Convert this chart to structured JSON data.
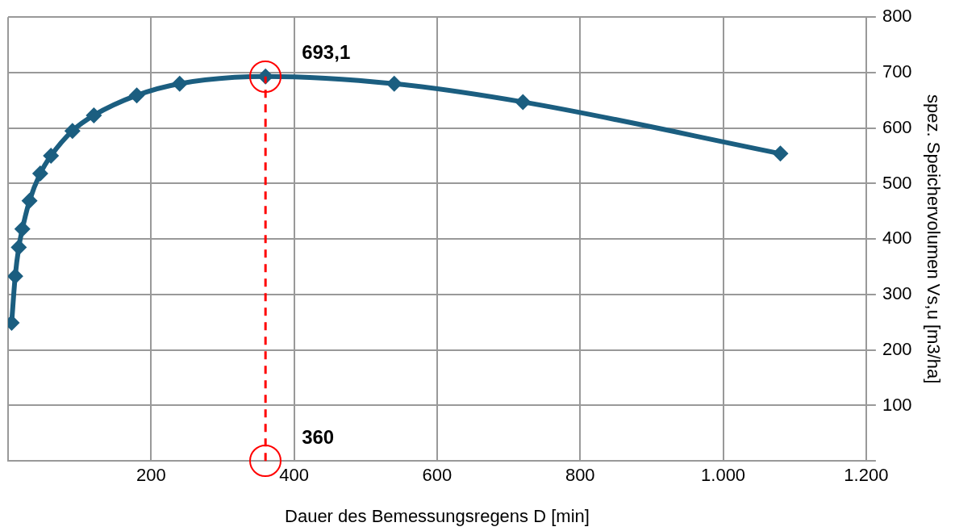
{
  "chart_data": {
    "type": "line",
    "xlabel": "Dauer des Bemessungsregens D [min]",
    "ylabel": "spez. Speichervolumen Vs,u [m3/ha]",
    "x": [
      5,
      10,
      15,
      20,
      30,
      45,
      60,
      90,
      120,
      180,
      240,
      360,
      540,
      720,
      1080
    ],
    "series": [
      {
        "color": "#1b5e80",
        "values": [
          249,
          333,
          385,
          418,
          469,
          518,
          550,
          595,
          623,
          659,
          680,
          693.1,
          680,
          647,
          554
        ]
      }
    ],
    "xlim": [
      0,
      1200
    ],
    "xticks": [
      {
        "value": 0,
        "label": null
      },
      200,
      400,
      600,
      800,
      {
        "value": 1000,
        "label": "1.000"
      },
      {
        "value": 1200,
        "label": "1.200"
      }
    ],
    "ylim": [
      0,
      800
    ],
    "yticks": [
      {
        "value": 0,
        "label": null
      },
      100,
      200,
      300,
      400,
      500,
      600,
      700,
      800
    ],
    "grid": true,
    "legend": false,
    "marker": "diamond",
    "line_style": "solid",
    "ref_lines": [
      {
        "axis": "x",
        "value": 360,
        "label": "360",
        "color": "#ff0000",
        "line_style": "dashed"
      }
    ],
    "annotations": [
      {
        "text": "693,1",
        "x": 360,
        "y": 693.1
      }
    ]
  }
}
